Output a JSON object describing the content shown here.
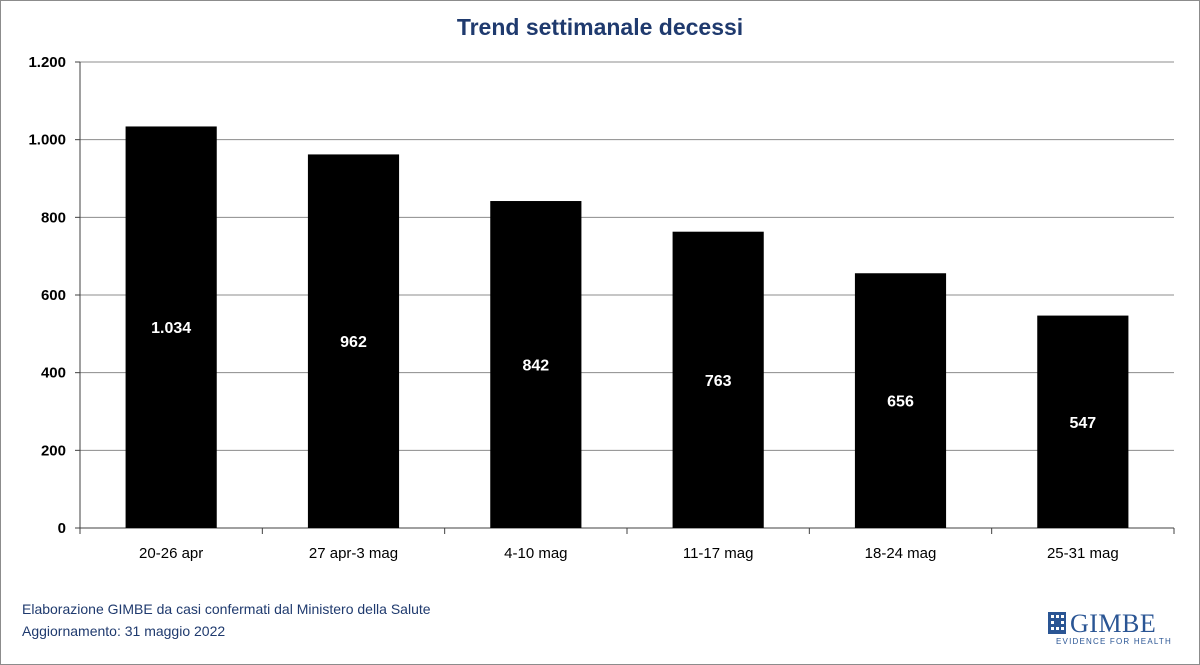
{
  "chart_data": {
    "type": "bar",
    "title": "Trend settimanale decessi",
    "categories": [
      "20-26 apr",
      "27 apr-3 mag",
      "4-10 mag",
      "11-17 mag",
      "18-24 mag",
      "25-31 mag"
    ],
    "values": [
      1034,
      962,
      842,
      763,
      656,
      547
    ],
    "value_labels": [
      "1.034",
      "962",
      "842",
      "763",
      "656",
      "547"
    ],
    "ylim": [
      0,
      1200
    ],
    "yticks": [
      0,
      200,
      400,
      600,
      800,
      1000,
      1200
    ],
    "ytick_labels": [
      "0",
      "200",
      "400",
      "600",
      "800",
      "1.000",
      "1.200"
    ],
    "xlabel": "",
    "ylabel": "",
    "grid": true,
    "bar_color": "#000000",
    "label_color": "#ffffff"
  },
  "footer": {
    "line1": "Elaborazione GIMBE da casi confermati dal Ministero della Salute",
    "line2": "Aggiornamento:  31 maggio 2022"
  },
  "logo": {
    "name": "GIMBE",
    "tagline": "EVIDENCE FOR HEALTH",
    "color": "#2a5594"
  },
  "colors": {
    "title": "#1f3a6e",
    "grid": "#8c8c8c"
  }
}
